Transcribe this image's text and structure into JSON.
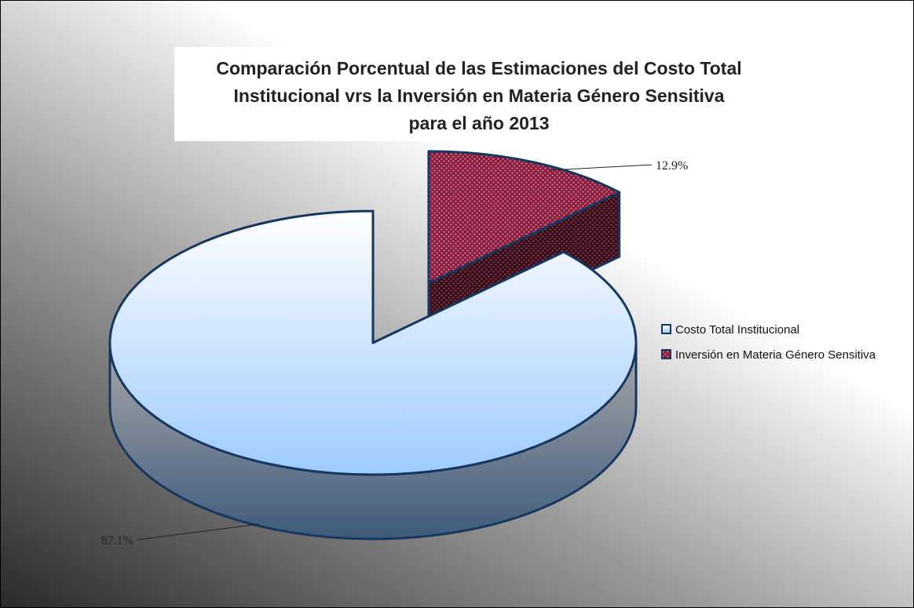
{
  "chart_data": {
    "type": "pie3d",
    "title": [
      "Comparación Porcentual de las Estimaciones del Costo Total",
      "Institucional vrs la Inversión en Materia Género Sensitiva",
      "para el año 2013"
    ],
    "categories": [
      "Costo Total Institucional",
      "Inversión en Materia Género Sensitiva"
    ],
    "values": [
      87.1,
      12.9
    ],
    "value_labels": [
      "87.1%",
      "12.9%"
    ],
    "colors": [
      "#9ecbff",
      "#8b1a3a"
    ],
    "legend": "right"
  }
}
